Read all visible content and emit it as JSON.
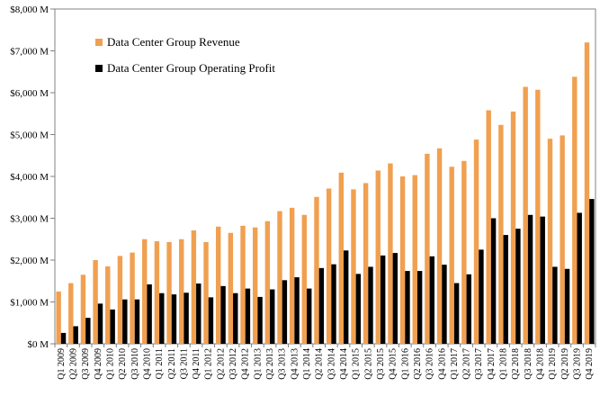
{
  "chart_data": {
    "type": "bar",
    "categories": [
      "Q1 2009",
      "Q2 2009",
      "Q3 2009",
      "Q4 2009",
      "Q1 2010",
      "Q2 2010",
      "Q3 2010",
      "Q4 2010",
      "Q1 2011",
      "Q2 2011",
      "Q3 2011",
      "Q4 2011",
      "Q1 2012",
      "Q2 2012",
      "Q3 2012",
      "Q4 2012",
      "Q1 2013",
      "Q2 2013",
      "Q3 2013",
      "Q4 2013",
      "Q1 2014",
      "Q2 2014",
      "Q3 2014",
      "Q4 2014",
      "Q1 2015",
      "Q2 2015",
      "Q3 2015",
      "Q4 2015",
      "Q1 2016",
      "Q2 2016",
      "Q3 2016",
      "Q4 2016",
      "Q1 2017",
      "Q2 2017",
      "Q3 2017",
      "Q4 2017",
      "Q1 2018",
      "Q2 2018",
      "Q3 2018",
      "Q4 2018",
      "Q1 2019",
      "Q2 2019",
      "Q3 2019",
      "Q4 2019"
    ],
    "series": [
      {
        "name": "Data Center Group Revenue",
        "color": "#f0a050",
        "values": [
          1250,
          1450,
          1650,
          2000,
          1850,
          2100,
          2180,
          2500,
          2450,
          2430,
          2500,
          2710,
          2430,
          2800,
          2650,
          2820,
          2780,
          2930,
          3170,
          3250,
          3080,
          3510,
          3710,
          4090,
          3690,
          3840,
          4140,
          4310,
          4000,
          4030,
          4540,
          4670,
          4230,
          4370,
          4880,
          5580,
          5230,
          5550,
          6140,
          6070,
          4900,
          4980,
          6380,
          7200
        ]
      },
      {
        "name": "Data Center Group Operating Profit",
        "color": "#000000",
        "values": [
          260,
          420,
          620,
          960,
          820,
          1060,
          1060,
          1420,
          1210,
          1180,
          1220,
          1440,
          1110,
          1380,
          1210,
          1320,
          1120,
          1300,
          1520,
          1590,
          1320,
          1810,
          1900,
          2230,
          1670,
          1840,
          2110,
          2170,
          1740,
          1740,
          2090,
          1890,
          1450,
          1660,
          2250,
          3000,
          2600,
          2750,
          3080,
          3040,
          1840,
          1790,
          3130,
          3460
        ]
      }
    ],
    "ylim": [
      0,
      8000
    ],
    "yticks": [
      0,
      1000,
      2000,
      3000,
      4000,
      5000,
      6000,
      7000,
      8000
    ],
    "ytick_labels": [
      "$0 M",
      "$1,000 M",
      "$2,000 M",
      "$3,000 M",
      "$4,000 M",
      "$5,000 M",
      "$6,000 M",
      "$7,000 M",
      "$8,000 M"
    ],
    "grid": false,
    "legend": "top-left"
  }
}
